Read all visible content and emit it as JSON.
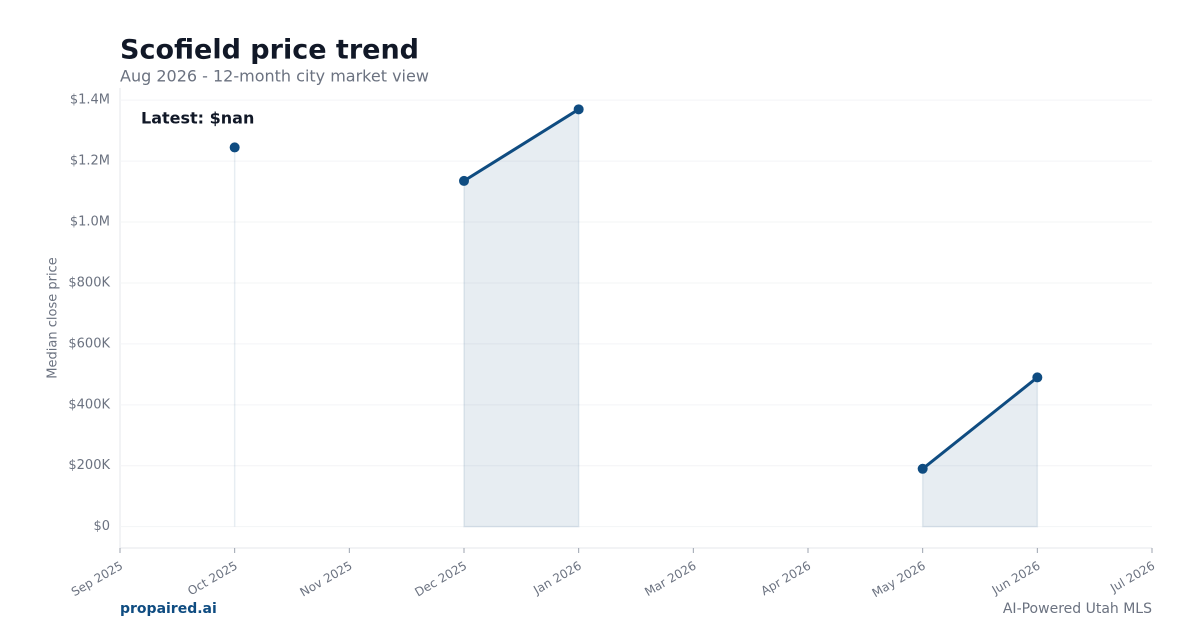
{
  "chart_data": {
    "type": "line",
    "title": "Scofield price trend",
    "subtitle": "Aug 2026 - 12-month city market view",
    "y_label": "Median close price",
    "annotation": "Latest: $nan",
    "footer_left": "propaired.ai",
    "footer_right": "AI-Powered Utah MLS",
    "categories": [
      "Sep 2025",
      "Oct 2025",
      "Nov 2025",
      "Dec 2025",
      "Jan 2026",
      "Mar 2026",
      "Apr 2026",
      "May 2026",
      "Jun 2026",
      "Jul 2026"
    ],
    "series": [
      {
        "name": "Median close price",
        "color": "#0f4c81",
        "values": [
          null,
          1245000,
          null,
          1135000,
          1370000,
          null,
          null,
          190000,
          490000,
          null
        ]
      }
    ],
    "ylim": [
      -70000,
      1440000
    ],
    "yticks": [
      {
        "value": 0,
        "label": "$0"
      },
      {
        "value": 200000,
        "label": "$200K"
      },
      {
        "value": 400000,
        "label": "$400K"
      },
      {
        "value": 600000,
        "label": "$600K"
      },
      {
        "value": 800000,
        "label": "$800K"
      },
      {
        "value": 1000000,
        "label": "$1.0M"
      },
      {
        "value": 1200000,
        "label": "$1.2M"
      },
      {
        "value": 1400000,
        "label": "$1.4M"
      }
    ],
    "grid": true,
    "area": true
  }
}
